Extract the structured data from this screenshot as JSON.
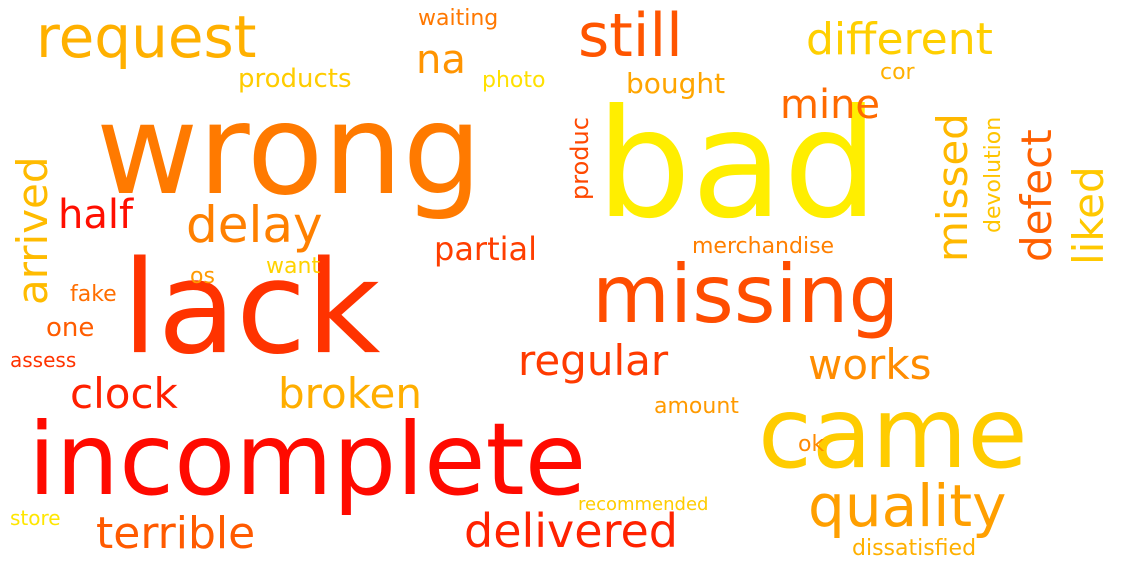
{
  "words": {
    "bad": {
      "text": "bad",
      "color": "#ffee00"
    },
    "wrong": {
      "text": "wrong",
      "color": "#ff7a00"
    },
    "lack": {
      "text": "lack",
      "color": "#ff3300"
    },
    "incomplete": {
      "text": "incomplete",
      "color": "#ff0a00"
    },
    "missing": {
      "text": "missing",
      "color": "#ff4d00"
    },
    "came": {
      "text": "came",
      "color": "#ffcc00"
    },
    "quality": {
      "text": "quality",
      "color": "#ff9f00"
    },
    "request": {
      "text": "request",
      "color": "#ffb000"
    },
    "still": {
      "text": "still",
      "color": "#ff5500"
    },
    "different": {
      "text": "different",
      "color": "#ffcf00"
    },
    "delay": {
      "text": "delay",
      "color": "#ff8000"
    },
    "delivered": {
      "text": "delivered",
      "color": "#ff2200"
    },
    "terrible": {
      "text": "terrible",
      "color": "#ff5a00"
    },
    "regular": {
      "text": "regular",
      "color": "#ff3a00"
    },
    "broken": {
      "text": "broken",
      "color": "#ffae00"
    },
    "works": {
      "text": "works",
      "color": "#ff8c00"
    },
    "clock": {
      "text": "clock",
      "color": "#ff2000"
    },
    "mine": {
      "text": "mine",
      "color": "#ff6a00"
    },
    "na": {
      "text": "na",
      "color": "#ff9400"
    },
    "half": {
      "text": "half",
      "color": "#ff0e00"
    },
    "partial": {
      "text": "partial",
      "color": "#ff3e00"
    },
    "arrived": {
      "text": "arrived",
      "color": "#ffbb00"
    },
    "missed": {
      "text": "missed",
      "color": "#ffb800"
    },
    "defect": {
      "text": "defect",
      "color": "#ff6000"
    },
    "liked": {
      "text": "liked",
      "color": "#ffc800"
    },
    "bought": {
      "text": "bought",
      "color": "#ffa500"
    },
    "products": {
      "text": "products",
      "color": "#ffcc00"
    },
    "photo": {
      "text": "photo",
      "color": "#ffe000"
    },
    "waiting": {
      "text": "waiting",
      "color": "#ff7800"
    },
    "produc": {
      "text": "produc",
      "color": "#ff4800"
    },
    "cor": {
      "text": "cor",
      "color": "#ffb000"
    },
    "devolution": {
      "text": "devolution",
      "color": "#ffc400"
    },
    "merchandise": {
      "text": "merchandise",
      "color": "#ff7f00"
    },
    "want": {
      "text": "want",
      "color": "#ffd200"
    },
    "os": {
      "text": "os",
      "color": "#ff9a00"
    },
    "one": {
      "text": "one",
      "color": "#ff5c00"
    },
    "fake": {
      "text": "fake",
      "color": "#ff6e00"
    },
    "assess": {
      "text": "assess",
      "color": "#ff3300"
    },
    "amount": {
      "text": "amount",
      "color": "#ff9a00"
    },
    "ok": {
      "text": "ok",
      "color": "#ff8a00"
    },
    "recommended": {
      "text": "recommended",
      "color": "#ffcc00"
    },
    "store": {
      "text": "store",
      "color": "#ffe600"
    },
    "dissatisfied": {
      "text": "dissatisfied",
      "color": "#ffb000"
    }
  }
}
